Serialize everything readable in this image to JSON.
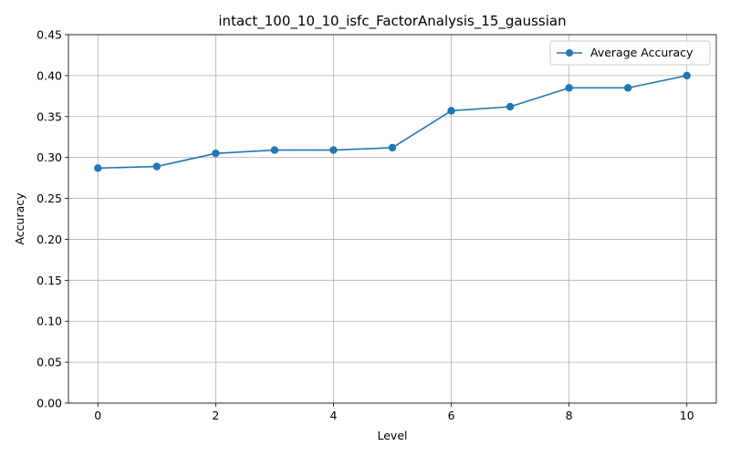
{
  "chart_data": {
    "type": "line",
    "title": "intact_100_10_10_isfc_FactorAnalysis_15_gaussian",
    "xlabel": "Level",
    "ylabel": "Accuracy",
    "x": [
      0,
      1,
      2,
      3,
      4,
      5,
      6,
      7,
      8,
      9,
      10
    ],
    "series": [
      {
        "name": "Average Accuracy",
        "values": [
          0.287,
          0.289,
          0.305,
          0.309,
          0.309,
          0.312,
          0.357,
          0.362,
          0.385,
          0.385,
          0.4
        ],
        "color": "#1f77b4",
        "marker": "circle"
      }
    ],
    "xlim": [
      -0.5,
      10.5
    ],
    "ylim": [
      0.0,
      0.45
    ],
    "xticks": [
      0,
      2,
      4,
      6,
      8,
      10
    ],
    "xtick_labels": [
      "0",
      "2",
      "4",
      "6",
      "8",
      "10"
    ],
    "yticks": [
      0.0,
      0.05,
      0.1,
      0.15,
      0.2,
      0.25,
      0.3,
      0.35,
      0.4,
      0.45
    ],
    "ytick_labels": [
      "0.00",
      "0.05",
      "0.10",
      "0.15",
      "0.20",
      "0.25",
      "0.30",
      "0.35",
      "0.40",
      "0.45"
    ],
    "grid": true,
    "legend_position": "top-right"
  }
}
